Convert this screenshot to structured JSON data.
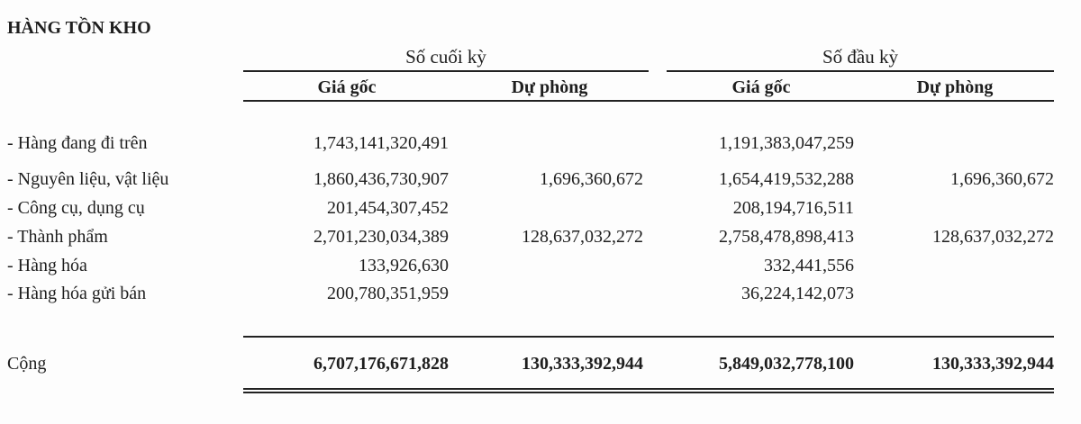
{
  "title": "HÀNG TỒN KHO",
  "groups": [
    "Số cuối kỳ",
    "Số đầu kỳ"
  ],
  "subheaders": [
    "Giá gốc",
    "Dự phòng",
    "Giá gốc",
    "Dự phòng"
  ],
  "rows": [
    {
      "label": "- Hàng đang đi trên",
      "values": [
        "1,743,141,320,491",
        "",
        "1,191,383,047,259",
        ""
      ]
    },
    {
      "label": "- Nguyên liệu, vật liệu",
      "values": [
        "1,860,436,730,907",
        "1,696,360,672",
        "1,654,419,532,288",
        "1,696,360,672"
      ]
    },
    {
      "label": "- Công cụ, dụng cụ",
      "values": [
        "201,454,307,452",
        "",
        "208,194,716,511",
        ""
      ]
    },
    {
      "label": "- Thành phẩm",
      "values": [
        "2,701,230,034,389",
        "128,637,032,272",
        "2,758,478,898,413",
        "128,637,032,272"
      ]
    },
    {
      "label": "- Hàng hóa",
      "values": [
        "133,926,630",
        "",
        "332,441,556",
        ""
      ]
    },
    {
      "label": "- Hàng hóa gửi bán",
      "values": [
        "200,780,351,959",
        "",
        "36,224,142,073",
        ""
      ]
    }
  ],
  "total": {
    "label": "Cộng",
    "values": [
      "6,707,176,671,828",
      "130,333,392,944",
      "5,849,032,778,100",
      "130,333,392,944"
    ]
  }
}
